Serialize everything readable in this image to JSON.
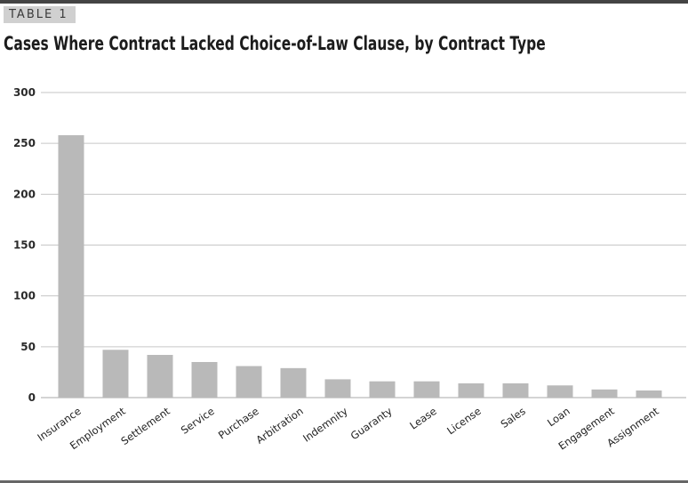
{
  "tag": "TABLE 1",
  "title": "Cases Where Contract Lacked Choice-of-Law Clause, by Contract Type",
  "colors": {
    "bar": "#b9b9b9",
    "grid": "#c6c6c6",
    "rule": "#444444"
  },
  "chart_data": {
    "type": "bar",
    "title": "Cases Where Contract Lacked Choice-of-Law Clause, by Contract Type",
    "xlabel": "",
    "ylabel": "",
    "ylim": [
      0,
      300
    ],
    "yticks": [
      0,
      50,
      100,
      150,
      200,
      250,
      300
    ],
    "grid": true,
    "categories": [
      "Insurance",
      "Employment",
      "Settlement",
      "Service",
      "Purchase",
      "Arbitration",
      "Indemnity",
      "Guaranty",
      "Lease",
      "License",
      "Sales",
      "Loan",
      "Engagement",
      "Assignment"
    ],
    "values": [
      258,
      47,
      42,
      35,
      31,
      29,
      18,
      16,
      16,
      14,
      14,
      12,
      8,
      7
    ]
  }
}
